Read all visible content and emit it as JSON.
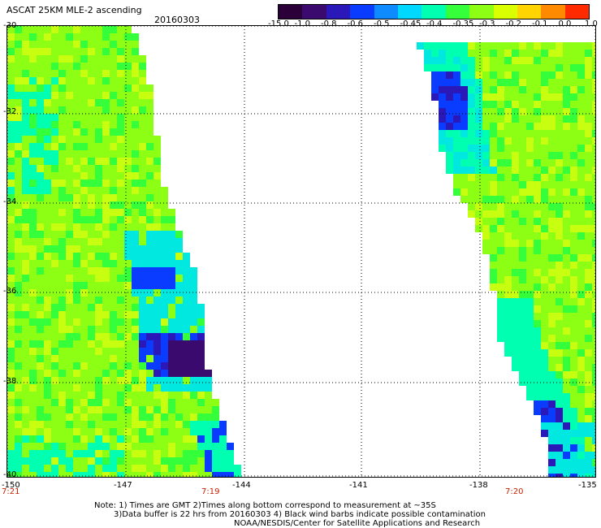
{
  "header": {
    "title": "ASCAT 25KM MLE-2 ascending",
    "date": "20160303"
  },
  "colorbar": {
    "labels": [
      "-15.0",
      "-1.0",
      "-0.8",
      "-0.6",
      "-0.5",
      "-0.45",
      "-0.4",
      "-0.35",
      "-0.3",
      "-0.2",
      "-0.1",
      "0.0",
      "1.0"
    ],
    "colors": [
      "#2b0038",
      "#3b0a6e",
      "#2a18b8",
      "#0a3cff",
      "#0e8cff",
      "#00d8ff",
      "#00ffb0",
      "#35ff3a",
      "#8cff14",
      "#d9ff00",
      "#ffd400",
      "#ff8a00",
      "#ff2a00"
    ]
  },
  "map": {
    "lat_labels": [
      "-30",
      "-32",
      "-34",
      "-36",
      "-38",
      "-40"
    ],
    "lon_labels": [
      "-150",
      "-147",
      "-144",
      "-141",
      "-138",
      "-135"
    ],
    "lat_range": [
      -40,
      -30
    ],
    "lon_range": [
      -150,
      -135
    ],
    "time_labels": [
      "7:21",
      "7:19",
      "7:20"
    ]
  },
  "footer": {
    "note1": "Note: 1) Times are GMT 2)Times along bottom correspond to measurement at ~35S",
    "note2": "3)Data buffer is 22 hrs from 20160303 4) Black wind barbs indicate possible contamination",
    "credit": "NOAA/NESDIS/Center for Satellite Applications and Research"
  }
}
